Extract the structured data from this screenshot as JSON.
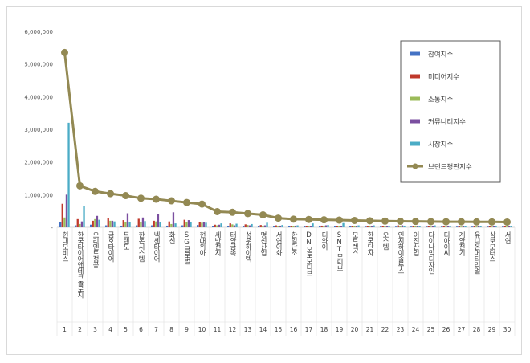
{
  "chart_data": {
    "type": "bar",
    "title": "",
    "xlabel": "",
    "ylabel": "",
    "ylim": [
      0,
      6000000
    ],
    "y_ticks": [
      "-",
      "1,000,000",
      "2,000,000",
      "3,000,000",
      "4,000,000",
      "5,000,000",
      "6,000,000"
    ],
    "legend_position": "right",
    "grid": false,
    "index_labels": [
      "1",
      "2",
      "3",
      "4",
      "5",
      "6",
      "7",
      "8",
      "9",
      "10",
      "11",
      "12",
      "13",
      "14",
      "15",
      "16",
      "17",
      "18",
      "19",
      "20",
      "21",
      "22",
      "23",
      "24",
      "25",
      "26",
      "27",
      "28",
      "29",
      "30"
    ],
    "categories": [
      "현대모비스",
      "한국타이어앤테크놀로지",
      "오리엔트정공",
      "금호타이어",
      "트랜도",
      "한온시스템",
      "넥센타이어",
      "화신",
      "SG글로벌",
      "현대위아",
      "세방전지",
      "태양금속",
      "성우하이텍",
      "명신산업",
      "서연이화",
      "한일단조",
      "DN오토모티브",
      "디와이",
      "SNT모티브",
      "모트렉스",
      "한국단자",
      "오스템",
      "인지하이솔루스",
      "이진산업",
      "다이나믹디자인",
      "디아이씨",
      "계양전기",
      "유니온머티리얼",
      "삼보모터스",
      "서연"
    ],
    "series": [
      {
        "name": "참여지수",
        "color": "#4472c4",
        "values": [
          150000,
          60000,
          80000,
          60000,
          50000,
          60000,
          60000,
          50000,
          60000,
          70000,
          40000,
          40000,
          40000,
          40000,
          30000,
          30000,
          30000,
          30000,
          30000,
          30000,
          20000,
          20000,
          20000,
          20000,
          20000,
          20000,
          20000,
          20000,
          20000,
          20000
        ]
      },
      {
        "name": "미디어지수",
        "color": "#c0392b",
        "values": [
          720000,
          250000,
          200000,
          270000,
          220000,
          260000,
          200000,
          180000,
          230000,
          160000,
          80000,
          120000,
          90000,
          70000,
          60000,
          40000,
          40000,
          50000,
          40000,
          40000,
          40000,
          40000,
          60000,
          30000,
          30000,
          30000,
          30000,
          30000,
          30000,
          30000
        ]
      },
      {
        "name": "소통지수",
        "color": "#9bbb59",
        "values": [
          300000,
          100000,
          250000,
          200000,
          150000,
          150000,
          180000,
          100000,
          150000,
          140000,
          60000,
          90000,
          70000,
          50000,
          40000,
          40000,
          30000,
          40000,
          30000,
          30000,
          30000,
          30000,
          30000,
          30000,
          20000,
          20000,
          20000,
          20000,
          20000,
          20000
        ]
      },
      {
        "name": "커뮤니티지수",
        "color": "#7b4fa0",
        "values": [
          1000000,
          180000,
          350000,
          200000,
          430000,
          300000,
          400000,
          460000,
          220000,
          160000,
          80000,
          60000,
          60000,
          60000,
          50000,
          50000,
          30000,
          60000,
          40000,
          40000,
          30000,
          40000,
          60000,
          30000,
          40000,
          30000,
          30000,
          30000,
          30000,
          30000
        ]
      },
      {
        "name": "시장지수",
        "color": "#4bacc6",
        "values": [
          3200000,
          650000,
          230000,
          180000,
          150000,
          190000,
          160000,
          120000,
          150000,
          140000,
          120000,
          110000,
          100000,
          140000,
          70000,
          60000,
          120000,
          70000,
          130000,
          60000,
          60000,
          50000,
          50000,
          40000,
          60000,
          40000,
          40000,
          40000,
          50000,
          30000
        ]
      },
      {
        "name": "브랜드평판지수",
        "color": "#938953",
        "line": true,
        "values": [
          5350000,
          1270000,
          1100000,
          1030000,
          970000,
          890000,
          860000,
          810000,
          760000,
          710000,
          480000,
          460000,
          420000,
          380000,
          280000,
          250000,
          240000,
          230000,
          220000,
          210000,
          200000,
          190000,
          185000,
          180000,
          175000,
          170000,
          170000,
          165000,
          165000,
          160000
        ]
      }
    ]
  }
}
